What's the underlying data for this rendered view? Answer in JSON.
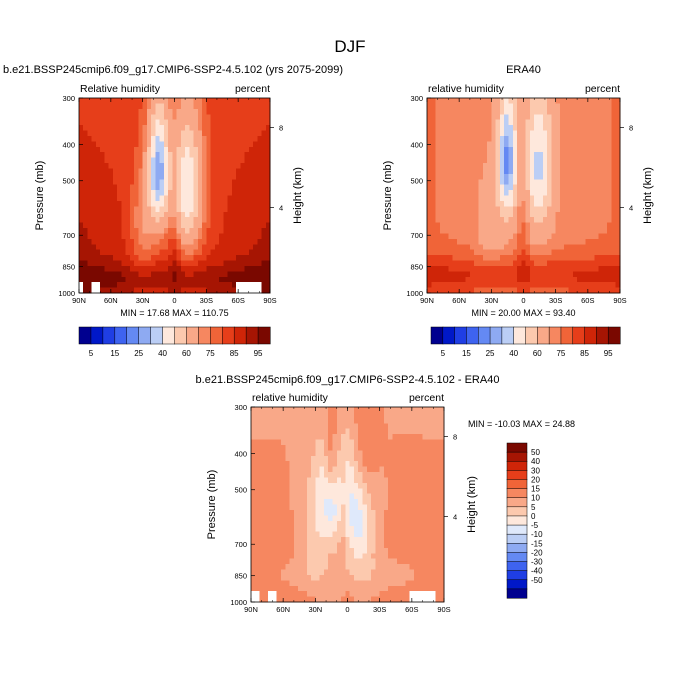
{
  "page": {
    "title": "DJF"
  },
  "colors": {
    "abs": [
      "#00008f",
      "#0018c8",
      "#1f3ee4",
      "#3e63f0",
      "#6489f3",
      "#8eaaf2",
      "#bbcef5",
      "#fee8dc",
      "#fcc9ae",
      "#f9a888",
      "#f68760",
      "#f06438",
      "#e63e1a",
      "#cf2508",
      "#a61503",
      "#7a0800"
    ],
    "diff": [
      "#00008f",
      "#0018c8",
      "#1f3ee4",
      "#3e63f0",
      "#6489f3",
      "#8eaaf2",
      "#bbcef5",
      "#dfe9fb",
      "#fee8dc",
      "#fcc9ae",
      "#f9a888",
      "#f68760",
      "#f06438",
      "#e63e1a",
      "#cf2508",
      "#a61503",
      "#7a0800"
    ]
  },
  "chart_data": [
    {
      "type": "heatmap",
      "title": "b.e21.BSSP245cmip6.f09_g17.CMIP6-SSP2-4.5.102 (yrs 2075-2099)",
      "subtitle_left": "Relative humidity",
      "subtitle_right": "percent",
      "xlabel": "",
      "ylabel": "Pressure (mb)",
      "y2label": "Height (km)",
      "x_ticks": [
        "90N",
        "60N",
        "30N",
        "0",
        "30S",
        "60S",
        "90S"
      ],
      "y_ticks": [
        "300",
        "400",
        "500",
        "700",
        "850",
        "1000"
      ],
      "y2_ticks": [
        "8",
        "4"
      ],
      "x_range": [
        90,
        -90
      ],
      "y_range": [
        300,
        1000
      ],
      "y_scale": "log",
      "stats": "MIN = 17.68  MAX = 110.75",
      "colorbar_labels": [
        "5",
        "15",
        "25",
        "40",
        "60",
        "75",
        "85",
        "95"
      ]
    },
    {
      "type": "heatmap",
      "title": "ERA40",
      "subtitle_left": "relative humidity",
      "subtitle_right": "percent",
      "xlabel": "",
      "ylabel": "Pressure (mb)",
      "y2label": "Height (km)",
      "x_ticks": [
        "90N",
        "60N",
        "30N",
        "0",
        "30S",
        "60S",
        "90S"
      ],
      "y_ticks": [
        "300",
        "400",
        "500",
        "700",
        "850",
        "1000"
      ],
      "y2_ticks": [
        "8",
        "4"
      ],
      "x_range": [
        90,
        -90
      ],
      "y_range": [
        300,
        1000
      ],
      "y_scale": "log",
      "stats": "MIN = 20.00  MAX = 93.40",
      "colorbar_labels": [
        "5",
        "15",
        "25",
        "40",
        "60",
        "75",
        "85",
        "95"
      ]
    },
    {
      "type": "heatmap",
      "title": "b.e21.BSSP245cmip6.f09_g17.CMIP6-SSP2-4.5.102 - ERA40",
      "subtitle_left": "relative humidity",
      "subtitle_right": "percent",
      "xlabel": "",
      "ylabel": "Pressure (mb)",
      "y2label": "Height (km)",
      "x_ticks": [
        "90N",
        "60N",
        "30N",
        "0",
        "30S",
        "60S",
        "90S"
      ],
      "y_ticks": [
        "300",
        "400",
        "500",
        "700",
        "850",
        "1000"
      ],
      "y2_ticks": [
        "8",
        "4"
      ],
      "x_range": [
        90,
        -90
      ],
      "y_range": [
        300,
        1000
      ],
      "y_scale": "log",
      "stats": "MIN = -10.03  MAX = 24.88",
      "colorbar_labels": [
        "50",
        "40",
        "30",
        "20",
        "15",
        "10",
        "5",
        "0",
        "-5",
        "-10",
        "-15",
        "-20",
        "-30",
        "-40",
        "-50"
      ]
    }
  ]
}
